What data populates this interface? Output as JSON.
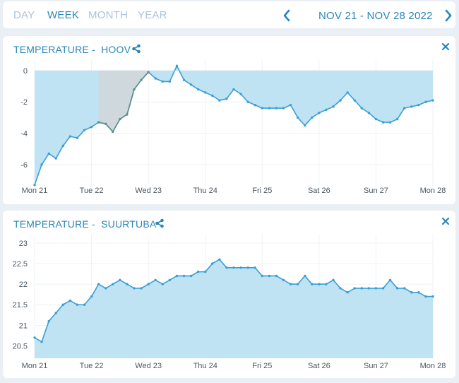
{
  "range_tabs": [
    {
      "label": "DAY",
      "active": false
    },
    {
      "label": "WEEK",
      "active": true
    },
    {
      "label": "MONTH",
      "active": false
    },
    {
      "label": "YEAR",
      "active": false
    }
  ],
  "date_range": "NOV 21 - NOV 28 2022",
  "icons": {
    "prev": "chevron-left-icon",
    "next": "chevron-right-icon",
    "share": "share-icon",
    "close": "close-icon"
  },
  "colors": {
    "accent": "#2b86b9",
    "area_fill": "#bfe3f3",
    "line": "#3a9fd4",
    "highlight_fill": "#cfd8dc",
    "highlight_line": "#5f8f8a"
  },
  "panels": [
    {
      "title_prefix": "TEMPERATURE -",
      "title_name": "HOOV",
      "chart_data": {
        "type": "area",
        "x_tick_labels": [
          "Mon 21",
          "Tue 22",
          "Wed 23",
          "Thu 24",
          "Fri 25",
          "Sat 26",
          "Sun 27",
          "Mon 28"
        ],
        "y_tick_labels": [
          "0",
          "-2",
          "-4",
          "-6"
        ],
        "y_ticks": [
          0,
          -2,
          -4,
          -6
        ],
        "ylim": [
          -7.4,
          0.4
        ],
        "baseline": 0,
        "highlight_range": [
          1.1,
          2.0
        ],
        "x": [
          0,
          0.125,
          0.25,
          0.375,
          0.5,
          0.625,
          0.75,
          0.875,
          1,
          1.125,
          1.25,
          1.375,
          1.5,
          1.625,
          1.75,
          1.875,
          2,
          2.125,
          2.25,
          2.375,
          2.5,
          2.625,
          2.75,
          2.875,
          3,
          3.125,
          3.25,
          3.375,
          3.5,
          3.625,
          3.75,
          3.875,
          4,
          4.125,
          4.25,
          4.375,
          4.5,
          4.625,
          4.75,
          4.875,
          5,
          5.125,
          5.25,
          5.375,
          5.5,
          5.625,
          5.75,
          5.875,
          6,
          6.125,
          6.25,
          6.375,
          6.5,
          6.625,
          6.75,
          6.875,
          7
        ],
        "values": [
          -7.3,
          -6.0,
          -5.3,
          -5.6,
          -4.8,
          -4.2,
          -4.3,
          -3.8,
          -3.6,
          -3.3,
          -3.4,
          -3.9,
          -3.1,
          -2.8,
          -1.2,
          -0.6,
          -0.1,
          -0.5,
          -0.7,
          -0.7,
          0.3,
          -0.6,
          -0.9,
          -1.2,
          -1.4,
          -1.6,
          -1.9,
          -1.8,
          -1.2,
          -1.5,
          -2.0,
          -2.2,
          -2.4,
          -2.4,
          -2.4,
          -2.4,
          -2.2,
          -3.0,
          -3.5,
          -3.0,
          -2.7,
          -2.5,
          -2.3,
          -1.9,
          -1.4,
          -1.9,
          -2.4,
          -2.7,
          -3.1,
          -3.3,
          -3.3,
          -3.1,
          -2.4,
          -2.3,
          -2.2,
          -2.0,
          -1.9
        ]
      }
    },
    {
      "title_prefix": "TEMPERATURE -",
      "title_name": "SUURTUBA",
      "chart_data": {
        "type": "area",
        "x_tick_labels": [
          "Mon 21",
          "Tue 22",
          "Wed 23",
          "Thu 24",
          "Fri 25",
          "Sat 26",
          "Sun 27",
          "Mon 28"
        ],
        "y_tick_labels": [
          "23",
          "22.5",
          "22",
          "21.5",
          "21",
          "20.5"
        ],
        "y_ticks": [
          23,
          22.5,
          22,
          21.5,
          21,
          20.5
        ],
        "ylim": [
          20.2,
          23.1
        ],
        "baseline": 20.2,
        "x": [
          0,
          0.125,
          0.25,
          0.375,
          0.5,
          0.625,
          0.75,
          0.875,
          1,
          1.125,
          1.25,
          1.375,
          1.5,
          1.625,
          1.75,
          1.875,
          2,
          2.125,
          2.25,
          2.375,
          2.5,
          2.625,
          2.75,
          2.875,
          3,
          3.125,
          3.25,
          3.375,
          3.5,
          3.625,
          3.75,
          3.875,
          4,
          4.125,
          4.25,
          4.375,
          4.5,
          4.625,
          4.75,
          4.875,
          5,
          5.125,
          5.25,
          5.375,
          5.5,
          5.625,
          5.75,
          5.875,
          6,
          6.125,
          6.25,
          6.375,
          6.5,
          6.625,
          6.75,
          6.875,
          7
        ],
        "values": [
          20.7,
          20.6,
          21.1,
          21.3,
          21.5,
          21.6,
          21.5,
          21.5,
          21.7,
          22.0,
          21.9,
          22.0,
          22.1,
          22.0,
          21.9,
          21.9,
          22.0,
          22.1,
          22.0,
          22.1,
          22.2,
          22.2,
          22.2,
          22.3,
          22.3,
          22.5,
          22.6,
          22.4,
          22.4,
          22.4,
          22.4,
          22.4,
          22.2,
          22.2,
          22.2,
          22.1,
          22.0,
          22.0,
          22.2,
          22.0,
          22.0,
          22.0,
          22.1,
          21.9,
          21.8,
          21.9,
          21.9,
          21.9,
          21.9,
          21.9,
          22.1,
          21.9,
          21.9,
          21.8,
          21.8,
          21.7,
          21.7
        ]
      }
    }
  ]
}
